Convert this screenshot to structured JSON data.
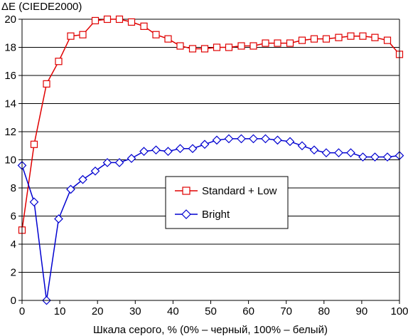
{
  "chart_data": {
    "type": "line",
    "title": "",
    "ylabel": "ΔE (CIEDE2000)",
    "xlabel": "Шкала серого, % (0% – черный, 100% – белый)",
    "xlim": [
      0,
      100
    ],
    "ylim": [
      0,
      20
    ],
    "xticks": [
      0,
      10,
      20,
      30,
      40,
      50,
      60,
      70,
      80,
      90,
      100
    ],
    "yticks": [
      0,
      2,
      4,
      6,
      8,
      10,
      12,
      14,
      16,
      18,
      20
    ],
    "grid": "horizontal",
    "legend_position": "center-right",
    "x": [
      0,
      3.2,
      6.5,
      9.7,
      12.9,
      16.1,
      19.4,
      22.6,
      25.8,
      29.0,
      32.3,
      35.5,
      38.7,
      41.9,
      45.2,
      48.4,
      51.6,
      54.8,
      58.1,
      61.3,
      64.5,
      67.7,
      71.0,
      74.2,
      77.4,
      80.6,
      83.9,
      87.1,
      90.3,
      93.5,
      96.8,
      100
    ],
    "series": [
      {
        "name": "Standard + Low",
        "color": "#e00000",
        "marker": "square",
        "values": [
          5.0,
          11.1,
          15.4,
          17.0,
          18.8,
          18.9,
          19.9,
          20.0,
          20.0,
          19.8,
          19.5,
          18.9,
          18.6,
          18.1,
          17.9,
          17.9,
          18.0,
          18.0,
          18.1,
          18.1,
          18.3,
          18.3,
          18.3,
          18.5,
          18.6,
          18.6,
          18.7,
          18.8,
          18.8,
          18.7,
          18.5,
          17.5
        ]
      },
      {
        "name": "Bright",
        "color": "#0000d0",
        "marker": "diamond",
        "values": [
          9.6,
          7.0,
          0.0,
          5.8,
          7.9,
          8.6,
          9.2,
          9.8,
          9.8,
          10.1,
          10.6,
          10.7,
          10.6,
          10.8,
          10.8,
          11.1,
          11.4,
          11.5,
          11.5,
          11.5,
          11.5,
          11.4,
          11.3,
          11.0,
          10.7,
          10.5,
          10.5,
          10.5,
          10.2,
          10.2,
          10.2,
          10.3
        ]
      }
    ]
  }
}
